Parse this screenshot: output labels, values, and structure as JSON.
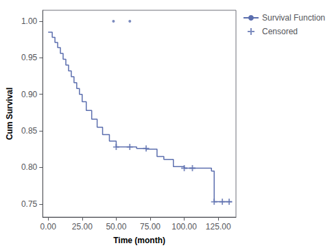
{
  "chart_data": {
    "type": "line",
    "xlabel": "Time (month)",
    "ylabel": "Cum Survival",
    "series": [
      {
        "name": "Survival Function",
        "type": "step",
        "color": "#5B6EAE",
        "x": [
          0,
          3,
          5,
          7,
          9,
          11,
          13,
          15,
          17,
          19,
          21,
          23,
          25,
          28,
          32,
          36,
          40,
          45,
          50,
          58,
          65,
          72,
          80,
          85,
          92,
          100,
          108,
          120,
          122,
          125,
          130,
          135
        ],
        "values": [
          0.985,
          0.978,
          0.971,
          0.964,
          0.956,
          0.948,
          0.94,
          0.932,
          0.924,
          0.916,
          0.908,
          0.9,
          0.89,
          0.878,
          0.866,
          0.855,
          0.845,
          0.836,
          0.828,
          0.828,
          0.826,
          0.825,
          0.815,
          0.811,
          0.801,
          0.799,
          0.799,
          0.795,
          0.753,
          0.753,
          0.753,
          0.753
        ]
      },
      {
        "name": "Censored",
        "type": "scatter",
        "marker": "plus",
        "color": "#5B6EAE",
        "x": [
          50,
          60,
          72,
          100,
          106,
          122,
          128,
          133
        ],
        "values": [
          0.828,
          0.828,
          0.826,
          0.799,
          0.799,
          0.753,
          0.753,
          0.753
        ]
      },
      {
        "type": "scatter",
        "marker": "dot",
        "color": "#5B6EAE",
        "x": [
          48,
          60
        ],
        "values": [
          1.0,
          1.0
        ]
      }
    ],
    "xlim": [
      -4,
      138
    ],
    "ylim": [
      0.732,
      1.015
    ],
    "xticks": [
      {
        "value": 0,
        "label": "0.00"
      },
      {
        "value": 25,
        "label": "25.00"
      },
      {
        "value": 50,
        "label": "50.00"
      },
      {
        "value": 75,
        "label": "75.00"
      },
      {
        "value": 100,
        "label": "100.00"
      },
      {
        "value": 125,
        "label": "125.00"
      }
    ],
    "yticks": [
      0.75,
      {
        "value": 0.8,
        "label": "0.80"
      },
      0.85,
      {
        "value": 0.9,
        "label": "0.90"
      },
      0.95,
      {
        "value": 1.0,
        "label": "1.00"
      }
    ],
    "grid": false,
    "legend": "right"
  }
}
